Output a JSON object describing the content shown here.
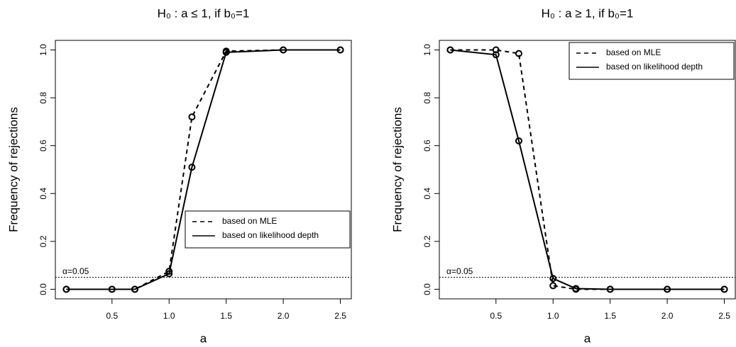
{
  "chart_data": [
    {
      "type": "line",
      "title": "H₀ : a ≤ 1, if b₀=1",
      "x_label": "a",
      "y_label": "Frequency of rejections",
      "x": [
        0.1,
        0.5,
        0.7,
        1.0,
        1.2,
        1.5,
        2.0,
        2.5
      ],
      "series": [
        {
          "name": "based on MLE",
          "color": "#000000",
          "linestyle": "dashed",
          "values": [
            0,
            0,
            0,
            0.075,
            0.72,
            0.995,
            1.0,
            1.0
          ]
        },
        {
          "name": "based on likelihood depth",
          "color": "#000000",
          "linestyle": "solid",
          "values": [
            0,
            0,
            0,
            0.065,
            0.51,
            0.99,
            1.0,
            1.0
          ]
        }
      ],
      "xlim": [
        0.004,
        2.596
      ],
      "ylim": [
        -0.04,
        1.04
      ],
      "xticks": [
        0.5,
        {
          "value": 1.0,
          "label": "1.0"
        },
        1.5,
        {
          "value": 2.0,
          "label": "2.0"
        },
        2.5
      ],
      "yticks": [
        {
          "value": 0,
          "label": "0.0"
        },
        0.2,
        0.4,
        0.6,
        0.8,
        {
          "value": 1.0,
          "label": "1.0"
        }
      ],
      "hline": {
        "value": 0.05,
        "label": "α=0.05"
      },
      "legend": "bottomright"
    },
    {
      "type": "line",
      "title": "H₀ : a ≥ 1, if b₀=1",
      "x_label": "a",
      "y_label": "Frequency of rejections",
      "x": [
        0.1,
        0.5,
        0.7,
        1.0,
        1.2,
        1.5,
        2.0,
        2.5
      ],
      "series": [
        {
          "name": "based on MLE",
          "color": "#000000",
          "linestyle": "dashed",
          "values": [
            1.0,
            1.0,
            0.985,
            0.015,
            0.0,
            0.0,
            0.0,
            0.0
          ]
        },
        {
          "name": "based on likelihood depth",
          "color": "#000000",
          "linestyle": "solid",
          "values": [
            1.0,
            0.98,
            0.62,
            0.045,
            0.003,
            0.0,
            0.0,
            0.0
          ]
        }
      ],
      "xlim": [
        0.004,
        2.596
      ],
      "ylim": [
        -0.04,
        1.04
      ],
      "xticks": [
        0.5,
        {
          "value": 1.0,
          "label": "1.0"
        },
        1.5,
        {
          "value": 2.0,
          "label": "2.0"
        },
        2.5
      ],
      "yticks": [
        {
          "value": 0,
          "label": "0.0"
        },
        0.2,
        0.4,
        0.6,
        0.8,
        {
          "value": 1.0,
          "label": "1.0"
        }
      ],
      "hline": {
        "value": 0.05,
        "label": "α=0.05"
      },
      "legend": "topright"
    }
  ]
}
